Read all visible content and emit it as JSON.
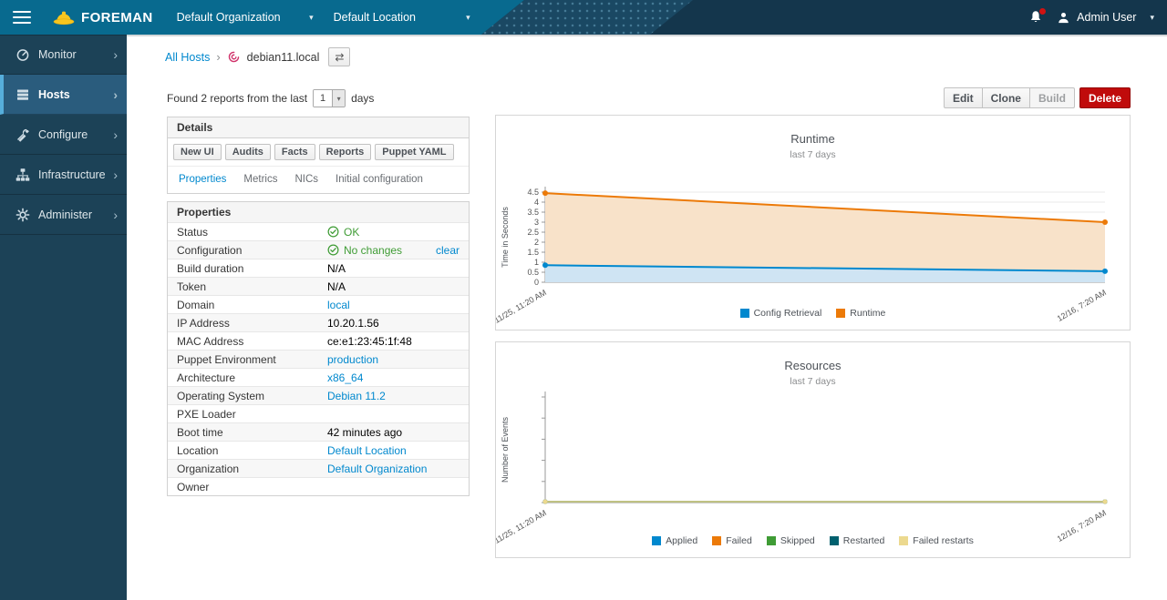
{
  "navbar": {
    "brand": "FOREMAN",
    "org": "Default Organization",
    "loc": "Default Location",
    "user": "Admin User"
  },
  "sidebar": {
    "items": [
      {
        "label": "Monitor",
        "icon": "gauge",
        "active": false
      },
      {
        "label": "Hosts",
        "icon": "server",
        "active": true
      },
      {
        "label": "Configure",
        "icon": "wrench",
        "active": false
      },
      {
        "label": "Infrastructure",
        "icon": "sitemap",
        "active": false
      },
      {
        "label": "Administer",
        "icon": "gear",
        "active": false
      }
    ]
  },
  "breadcrumb": {
    "link": "All Hosts",
    "separator": "›",
    "host": "debian11.local",
    "switcher_icon": "⇄"
  },
  "reports_bar": {
    "text_before": "Found 2 reports from the last",
    "days_value": "1",
    "text_after": "days"
  },
  "actions": {
    "edit": "Edit",
    "clone": "Clone",
    "build": "Build",
    "delete": "Delete"
  },
  "details": {
    "title": "Details",
    "buttons": [
      "New UI",
      "Audits",
      "Facts",
      "Reports",
      "Puppet YAML"
    ],
    "tabs": [
      {
        "label": "Properties",
        "active": true
      },
      {
        "label": "Metrics",
        "active": false
      },
      {
        "label": "NICs",
        "active": false
      },
      {
        "label": "Initial configuration",
        "active": false
      }
    ]
  },
  "properties": {
    "title": "Properties",
    "rows": [
      {
        "label": "Status",
        "value": "OK",
        "value_type": "ok"
      },
      {
        "label": "Configuration",
        "value": "No changes",
        "value_type": "ok",
        "action": "clear"
      },
      {
        "label": "Build duration",
        "value": "N/A",
        "value_type": "text"
      },
      {
        "label": "Token",
        "value": "N/A",
        "value_type": "text"
      },
      {
        "label": "Domain",
        "value": "local",
        "value_type": "link"
      },
      {
        "label": "IP Address",
        "value": "10.20.1.56",
        "value_type": "text"
      },
      {
        "label": "MAC Address",
        "value": "ce:e1:23:45:1f:48",
        "value_type": "text"
      },
      {
        "label": "Puppet Environment",
        "value": "production",
        "value_type": "link"
      },
      {
        "label": "Architecture",
        "value": "x86_64",
        "value_type": "link"
      },
      {
        "label": "Operating System",
        "value": "Debian 11.2",
        "value_type": "link"
      },
      {
        "label": "PXE Loader",
        "value": "",
        "value_type": "text"
      },
      {
        "label": "Boot time",
        "value": "42 minutes ago",
        "value_type": "text"
      },
      {
        "label": "Location",
        "value": "Default Location",
        "value_type": "link"
      },
      {
        "label": "Organization",
        "value": "Default Organization",
        "value_type": "link"
      },
      {
        "label": "Owner",
        "value": "",
        "value_type": "text"
      }
    ]
  },
  "chart_data": [
    {
      "type": "area",
      "title": "Runtime",
      "subtitle": "last 7 days",
      "ylabel": "Time in Seconds",
      "x": [
        "11/25, 11:20 AM",
        "12/16, 7:20 AM"
      ],
      "series": [
        {
          "name": "Config Retrieval",
          "values": [
            0.85,
            0.55
          ],
          "color": "#0088ce",
          "fill": "#cfe4f3"
        },
        {
          "name": "Runtime",
          "values": [
            4.45,
            3.0
          ],
          "color": "#ec7a08",
          "fill": "#f8e2c9"
        }
      ],
      "ylim": [
        0,
        4.5
      ],
      "yticks": [
        0,
        0.5,
        1,
        1.5,
        2,
        2.5,
        3,
        3.5,
        4,
        4.5
      ],
      "grid": true,
      "legend_position": "bottom"
    },
    {
      "type": "area",
      "title": "Resources",
      "subtitle": "last 7 days",
      "ylabel": "Number of Events",
      "x": [
        "11/25, 11:20 AM",
        "12/16, 7:20 AM"
      ],
      "series": [
        {
          "name": "Applied",
          "values": [
            0,
            0
          ],
          "color": "#0088ce"
        },
        {
          "name": "Failed",
          "values": [
            0,
            0
          ],
          "color": "#ec7a08"
        },
        {
          "name": "Skipped",
          "values": [
            0,
            0
          ],
          "color": "#3f9c35"
        },
        {
          "name": "Restarted",
          "values": [
            0,
            0
          ],
          "color": "#00606e"
        },
        {
          "name": "Failed restarts",
          "values": [
            0,
            0
          ],
          "color": "#ecd98f"
        }
      ],
      "ylim": [
        0,
        0
      ],
      "yticks": [],
      "grid": false,
      "legend_position": "bottom"
    }
  ],
  "colors": {
    "link": "#0088ce",
    "ok_green": "#3f9c35",
    "delete_red": "#c00b0b",
    "navbar_teal": "#086a8f",
    "navbar_dark": "#14364c",
    "sidebar_bg": "#1c4257",
    "sidebar_active": "#2a5c7d",
    "sidebar_accent": "#56aedb",
    "brand_yellow": "#f7c51e"
  }
}
